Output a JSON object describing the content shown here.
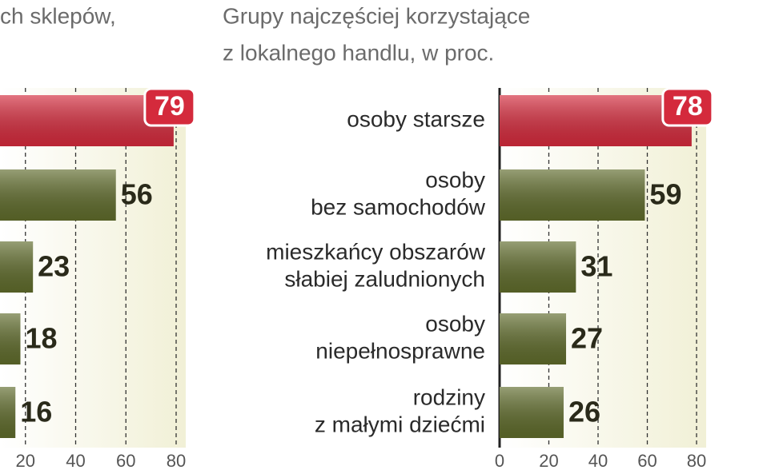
{
  "chart_data": [
    {
      "type": "bar",
      "orientation": "horizontal",
      "title": "ch sklepów,",
      "values": [
        79,
        56,
        23,
        18,
        16
      ],
      "colors": [
        "#d42a3c",
        "#5f6b2b",
        "#5f6b2b",
        "#5f6b2b",
        "#5f6b2b"
      ],
      "xlim": [
        0,
        80
      ],
      "xticks": [
        20,
        40,
        60,
        80
      ],
      "grid": true
    },
    {
      "type": "bar",
      "orientation": "horizontal",
      "title": [
        "Grupy najczęściej korzystające",
        "z lokalnego handlu, w proc."
      ],
      "categories": [
        [
          "osoby starsze"
        ],
        [
          "osoby",
          "bez samochodów"
        ],
        [
          "mieszkańcy obszarów",
          "słabiej zaludnionych"
        ],
        [
          "osoby",
          "niepełnosprawne"
        ],
        [
          "rodziny",
          "z małymi dziećmi"
        ]
      ],
      "values": [
        78,
        59,
        31,
        27,
        26
      ],
      "colors": [
        "#d42a3c",
        "#5f6b2b",
        "#5f6b2b",
        "#5f6b2b",
        "#5f6b2b"
      ],
      "xlim": [
        0,
        80
      ],
      "xticks": [
        0,
        20,
        40,
        60,
        80
      ],
      "grid": true
    }
  ]
}
